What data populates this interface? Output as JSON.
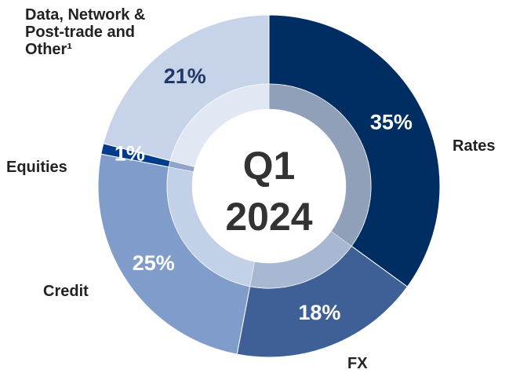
{
  "chart_data": {
    "type": "donut",
    "center_label": [
      "Q1",
      "2024"
    ],
    "categories": [
      "Rates",
      "FX",
      "Credit",
      "Equities",
      "Data, Network & Post-trade and Other¹"
    ],
    "values": [
      35,
      18,
      25,
      1,
      21
    ],
    "value_labels": [
      "35%",
      "18%",
      "25%",
      "1%",
      "21%"
    ],
    "colors": [
      "#002d62",
      "#3f5f97",
      "#7f9ccb",
      "#003a8c",
      "#c6d3e9"
    ],
    "inner_colors": [
      "#8fa0b8",
      "#a9b8d2",
      "#c3d1e8",
      "#8fa4c6",
      "#e1e8f3"
    ],
    "value_label_colors": [
      "#ffffff",
      "#ffffff",
      "#ffffff",
      "#ffffff",
      "#1f3864"
    ]
  }
}
